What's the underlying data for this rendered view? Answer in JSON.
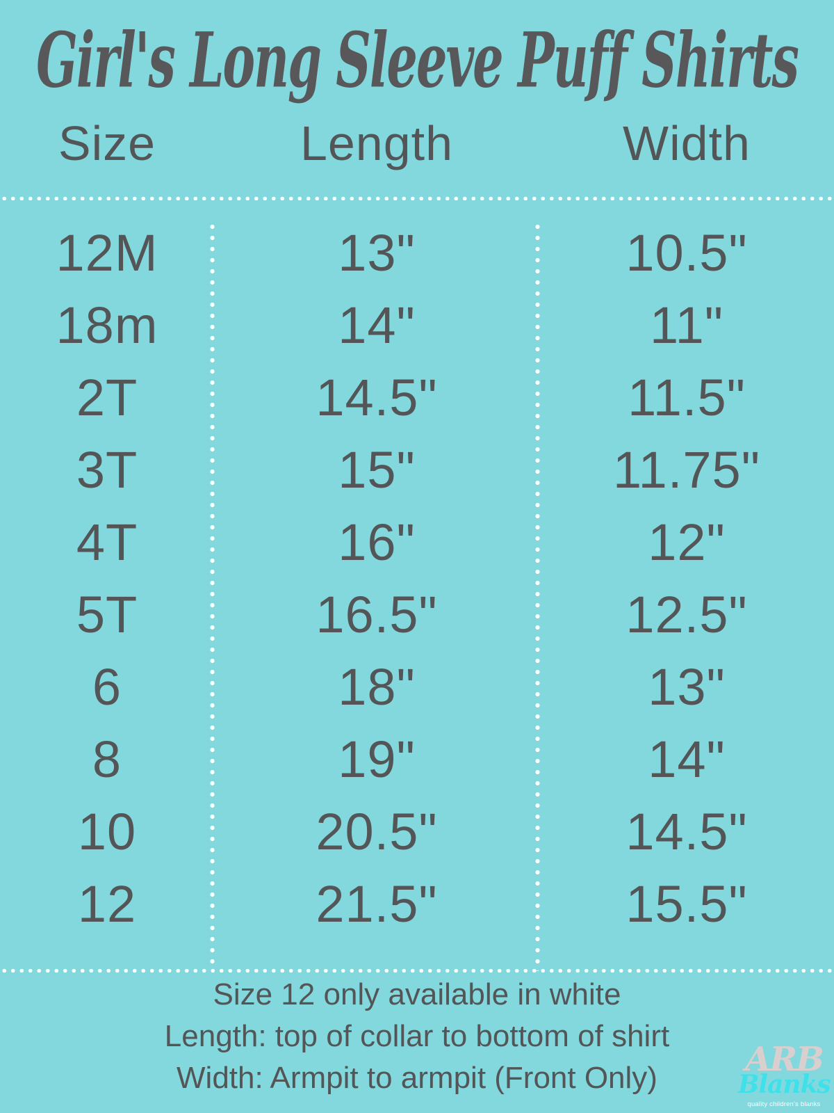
{
  "title": "Girl's Long Sleeve Puff Shirts",
  "chart_data": {
    "type": "table",
    "title": "Girl's Long Sleeve Puff Shirts",
    "columns": [
      "Size",
      "Length",
      "Width"
    ],
    "rows": [
      [
        "12M",
        "13\"",
        "10.5\""
      ],
      [
        "18m",
        "14\"",
        "11\""
      ],
      [
        "2T",
        "14.5\"",
        "11.5\""
      ],
      [
        "3T",
        "15\"",
        "11.75\""
      ],
      [
        "4T",
        "16\"",
        "12\""
      ],
      [
        "5T",
        "16.5\"",
        "12.5\""
      ],
      [
        "6",
        "18\"",
        "13\""
      ],
      [
        "8",
        "19\"",
        "14\""
      ],
      [
        "10",
        "20.5\"",
        "14.5\""
      ],
      [
        "12",
        "21.5\"",
        "15.5\""
      ]
    ],
    "layout_hints": {
      "grid": "white dotted dividers: one horizontal under headers, one above notes, two vertical between columns",
      "background": "#82d8dd"
    }
  },
  "notes": [
    "Size 12 only available in white",
    "Length: top of collar to bottom of shirt",
    "Width: Armpit to armpit (Front Only)"
  ],
  "logo": {
    "line1": "ARB",
    "line2": "Blanks",
    "tagline": "quality children's blanks"
  },
  "colors": {
    "background": "#82d8dd",
    "text": "#545557",
    "divider_dots": "#ffffff",
    "logo_top": "#d9cfce",
    "logo_script": "#3ee1e9",
    "logo_tagline": "#ffffff"
  }
}
